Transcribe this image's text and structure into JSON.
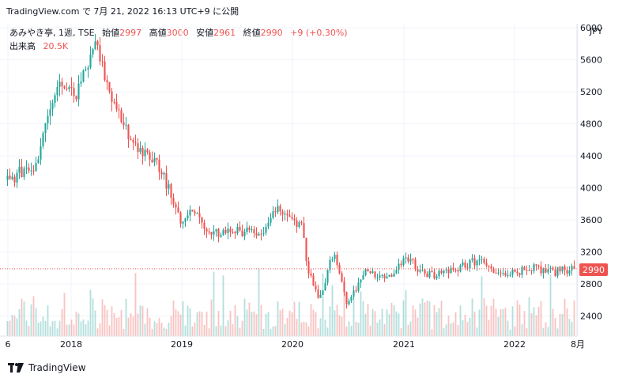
{
  "header": {
    "text": "TradingView.com で 7月 21, 2022 16:13 UTC+9 に公開"
  },
  "legend": {
    "symbol": "あみやき亭, 1週, TSE",
    "open_label": "始値",
    "open": "2997",
    "high_label": "高値",
    "high": "3000",
    "low_label": "安値",
    "low": "2961",
    "close_label": "終値",
    "close": "2990",
    "change": "+9 (+0.30%)",
    "volume_label": "出来高",
    "volume": "20.5K"
  },
  "currency": "JPY",
  "price_tag": "2990",
  "footer": {
    "brand": "TradingView"
  },
  "colors": {
    "up": "#26a69a",
    "down": "#ef5350",
    "grid": "#f0f3fa",
    "axis_text": "#131722"
  },
  "chart_data": {
    "type": "candlestick",
    "title": "あみやき亭, 1週, TSE",
    "y_ticks": [
      2400,
      2800,
      3200,
      3600,
      4000,
      4400,
      4800,
      5200,
      5600,
      6000
    ],
    "y_range": [
      2150,
      6050
    ],
    "x_ticks": [
      "6",
      "2018",
      "2019",
      "2020",
      "2021",
      "2022",
      "8月"
    ],
    "last_price": 2990,
    "price_path": [
      {
        "t": 0.0,
        "p": 4100
      },
      {
        "t": 0.05,
        "p": 4300
      },
      {
        "t": 0.09,
        "p": 5300
      },
      {
        "t": 0.12,
        "p": 5100
      },
      {
        "t": 0.155,
        "p": 5800
      },
      {
        "t": 0.18,
        "p": 5250
      },
      {
        "t": 0.22,
        "p": 4500
      },
      {
        "t": 0.26,
        "p": 4350
      },
      {
        "t": 0.28,
        "p": 4050
      },
      {
        "t": 0.31,
        "p": 3550
      },
      {
        "t": 0.33,
        "p": 3750
      },
      {
        "t": 0.36,
        "p": 3400
      },
      {
        "t": 0.4,
        "p": 3500
      },
      {
        "t": 0.44,
        "p": 3400
      },
      {
        "t": 0.48,
        "p": 3750
      },
      {
        "t": 0.52,
        "p": 3500
      },
      {
        "t": 0.53,
        "p": 3000
      },
      {
        "t": 0.55,
        "p": 2600
      },
      {
        "t": 0.575,
        "p": 3200
      },
      {
        "t": 0.6,
        "p": 2550
      },
      {
        "t": 0.63,
        "p": 2950
      },
      {
        "t": 0.67,
        "p": 2850
      },
      {
        "t": 0.7,
        "p": 3150
      },
      {
        "t": 0.74,
        "p": 2900
      },
      {
        "t": 0.79,
        "p": 3000
      },
      {
        "t": 0.83,
        "p": 3100
      },
      {
        "t": 0.88,
        "p": 2900
      },
      {
        "t": 0.92,
        "p": 3000
      },
      {
        "t": 0.96,
        "p": 2950
      },
      {
        "t": 1.0,
        "p": 2990
      }
    ]
  }
}
